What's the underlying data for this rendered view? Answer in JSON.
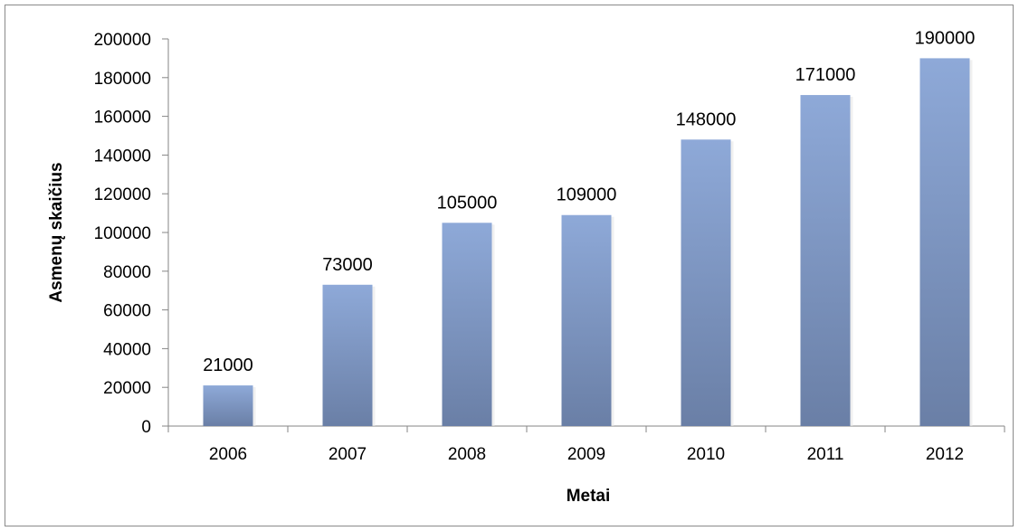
{
  "chart_data": {
    "type": "bar",
    "categories": [
      "2006",
      "2007",
      "2008",
      "2009",
      "2010",
      "2011",
      "2012"
    ],
    "series": [
      {
        "values": [
          21000,
          73000,
          105000,
          109000,
          148000,
          171000,
          190000
        ]
      }
    ],
    "data_labels": [
      "21000",
      "73000",
      "105000",
      "109000",
      "148000",
      "171000",
      "190000"
    ],
    "y_ticks": [
      "0",
      "20000",
      "40000",
      "60000",
      "80000",
      "100000",
      "120000",
      "140000",
      "160000",
      "180000",
      "200000"
    ],
    "xlabel": "Metai",
    "ylabel": "Asmenų skaičius",
    "ylim": [
      0,
      200000
    ],
    "grid": false,
    "legend": "none",
    "bar_color_top": "#8ea9d8",
    "bar_color_bottom": "#6a7fa6"
  }
}
